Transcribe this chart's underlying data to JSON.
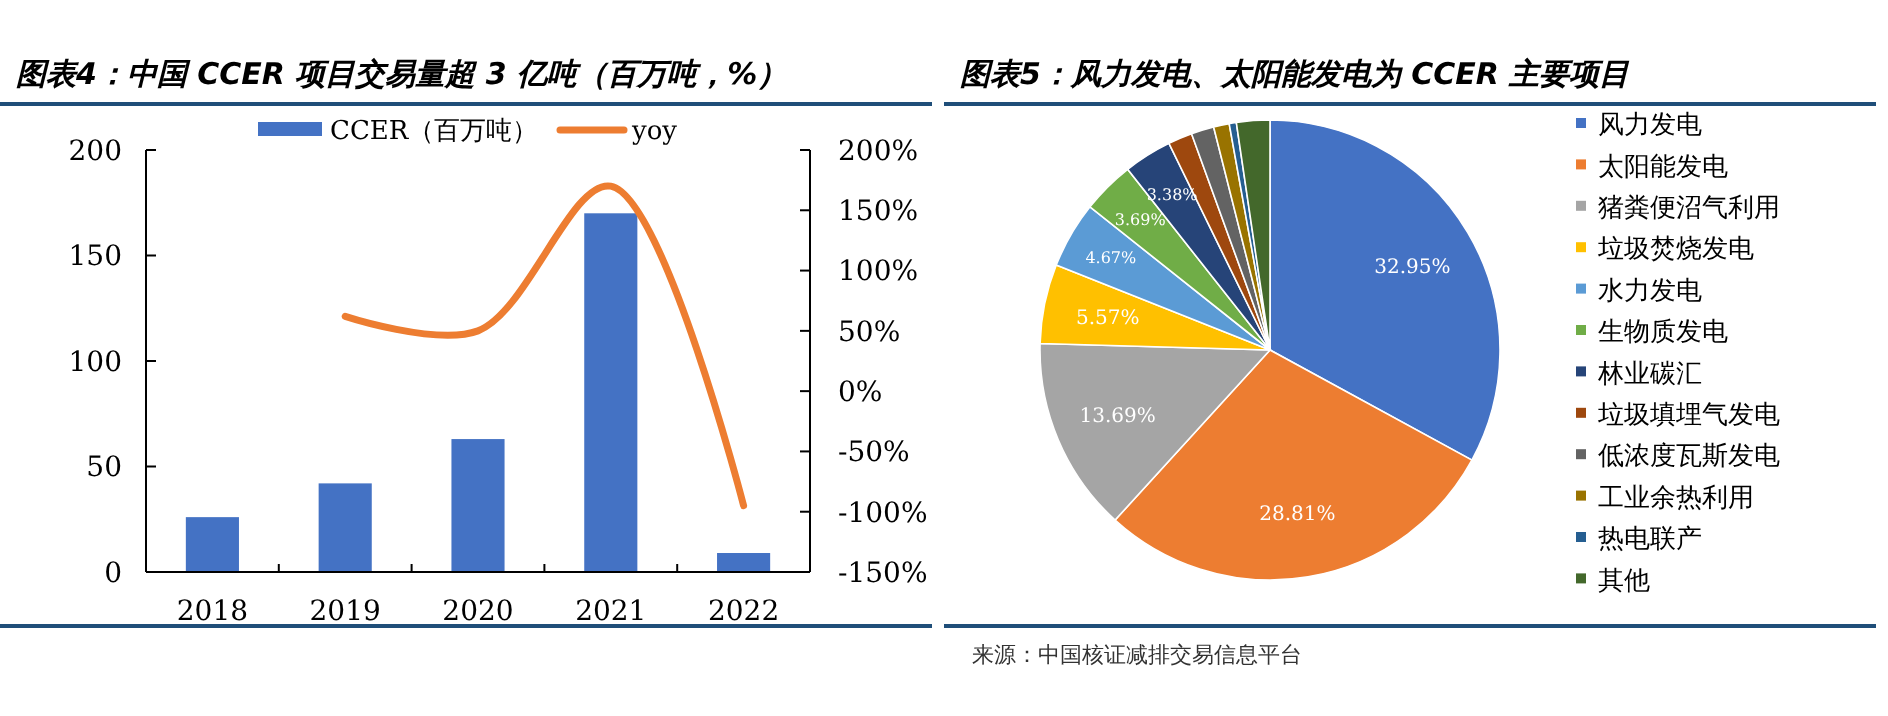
{
  "chart_data": [
    {
      "type": "bar",
      "title": "图表4：中国 CCER 项目交易量超 3 亿吨（百万吨，%）",
      "categories": [
        "2018",
        "2019",
        "2020",
        "2021",
        "2022"
      ],
      "series": [
        {
          "name": "CCER（百万吨）",
          "color": "#4472c4",
          "values": [
            26,
            42,
            63,
            170,
            9
          ]
        },
        {
          "name": "yoy",
          "type": "line",
          "axis": "y2",
          "color": "#ed7d31",
          "values": [
            null,
            62,
            50,
            170,
            -95
          ]
        }
      ],
      "ylim": [
        0,
        200
      ],
      "yticks": [
        0,
        50,
        100,
        150,
        200
      ],
      "y2lim": [
        -150,
        200
      ],
      "y2ticks": [
        {
          "value": -150,
          "label": "-150%"
        },
        {
          "value": -100,
          "label": "-100%"
        },
        {
          "value": -50,
          "label": "-50%"
        },
        {
          "value": 0,
          "label": "0%"
        },
        {
          "value": 50,
          "label": "50%"
        },
        {
          "value": 100,
          "label": "100%"
        },
        {
          "value": 150,
          "label": "150%"
        },
        {
          "value": 200,
          "label": "200%"
        }
      ],
      "legend": "top",
      "grid": false
    },
    {
      "type": "pie",
      "title": "图表5：风力发电、太阳能发电为 CCER 主要项目",
      "categories": [
        "风力发电",
        "太阳能发电",
        "猪粪便沼气利用",
        "垃圾焚烧发电",
        "水力发电",
        "生物质发电",
        "林业碳汇",
        "垃圾填埋气发电",
        "低浓度瓦斯发电",
        "工业余热利用",
        "热电联产",
        "其他"
      ],
      "values": [
        32.95,
        28.81,
        13.69,
        5.57,
        4.67,
        3.69,
        3.38,
        1.7,
        1.6,
        1.1,
        0.5,
        2.34
      ],
      "value_labels": [
        "32.95%",
        "28.81%",
        "13.69%",
        "5.57%",
        "4.67%",
        "3.69%",
        "3.38%",
        null,
        null,
        null,
        null,
        null
      ],
      "colors": [
        "#4472c4",
        "#ed7d31",
        "#a5a5a5",
        "#ffc000",
        "#5b9bd5",
        "#70ad47",
        "#264478",
        "#9e480e",
        "#636363",
        "#997300",
        "#255e91",
        "#43682b"
      ],
      "legend": "right",
      "annotations": [
        "来源：中国核证减排交易信息平台"
      ]
    }
  ]
}
